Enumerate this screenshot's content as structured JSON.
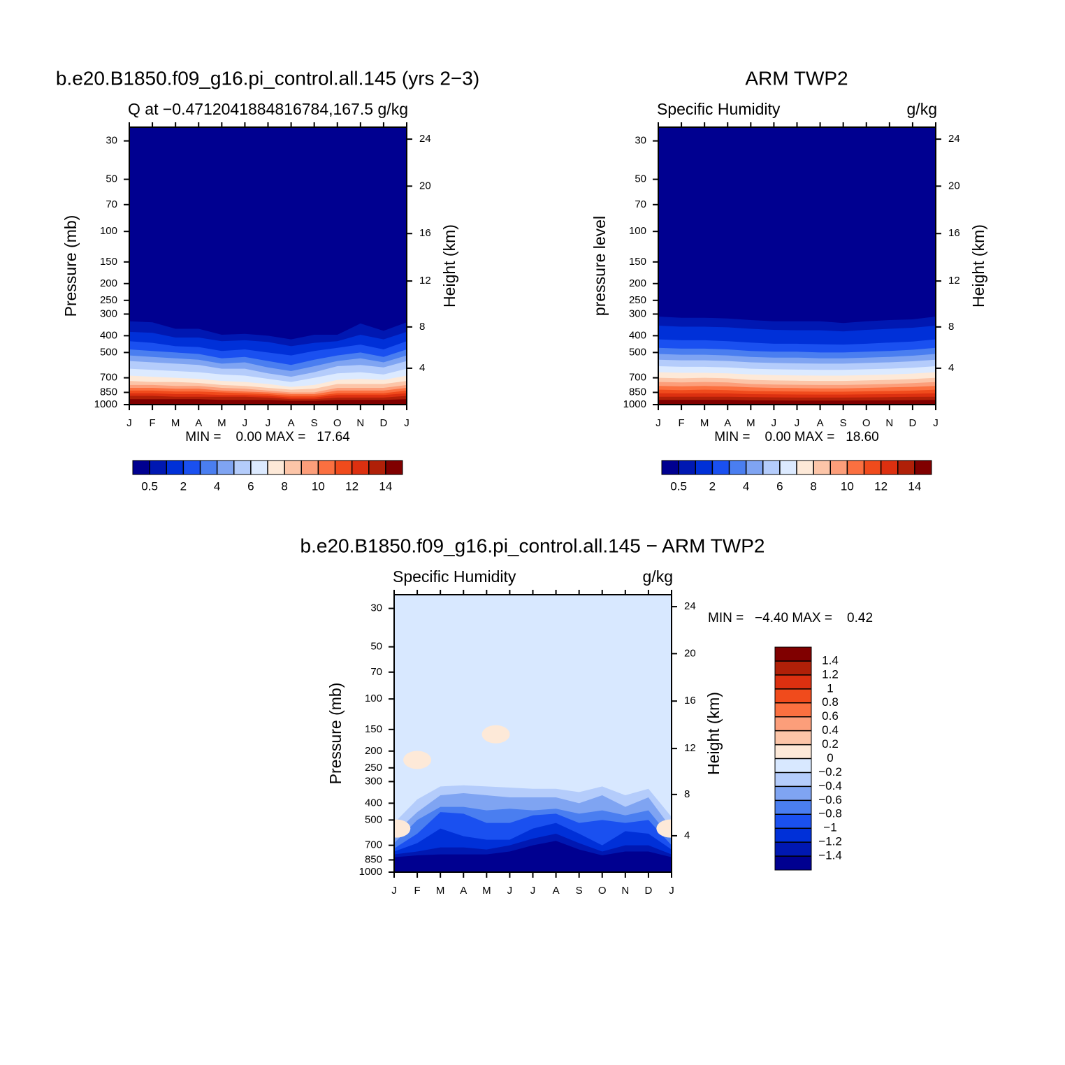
{
  "chart_data": [
    {
      "type": "contour",
      "title": "b.e20.B1850.f09_g16.pi_control.all.145 (yrs 2−3)",
      "subtitle_left": "Q at −0.4712041884816784,167.5",
      "subtitle_right": "g/kg",
      "ylabel": "Pressure (mb)",
      "y2label": "Height (km)",
      "categories": [
        "J",
        "F",
        "M",
        "A",
        "M",
        "J",
        "J",
        "A",
        "S",
        "O",
        "N",
        "D",
        "J"
      ],
      "log_y": true,
      "ylim": [
        1000,
        25
      ],
      "yticks": [
        30,
        50,
        70,
        100,
        150,
        200,
        250,
        300,
        400,
        500,
        700,
        850,
        1000
      ],
      "y2ticks": [
        4,
        8,
        12,
        16,
        20,
        24
      ],
      "stats": "MIN =    0.00 MAX =   17.64",
      "colorbar": {
        "orientation": "horizontal",
        "levels": [
          0.5,
          1,
          2,
          3,
          4,
          5,
          6,
          7,
          8,
          9,
          10,
          11,
          12,
          13,
          14
        ],
        "ticks": [
          0.5,
          2,
          4,
          6,
          8,
          10,
          12,
          14
        ],
        "colors": [
          "#000090",
          "#0018b2",
          "#0030d8",
          "#1a50f0",
          "#4a7ef0",
          "#7fa4f2",
          "#b4ccfb",
          "#dceaff",
          "#fde9d8",
          "#fcc5a8",
          "#fc9e7a",
          "#fb7040",
          "#f04b1c",
          "#dc3010",
          "#b02008",
          "#800000"
        ]
      },
      "contours": [
        {
          "level": 0.5,
          "pressure": [
            330,
            335,
            365,
            365,
            395,
            390,
            400,
            420,
            395,
            395,
            340,
            375,
            335
          ]
        },
        {
          "level": 1,
          "pressure": [
            380,
            385,
            410,
            410,
            430,
            425,
            435,
            460,
            440,
            430,
            395,
            420,
            380
          ]
        },
        {
          "level": 2,
          "pressure": [
            430,
            440,
            460,
            465,
            490,
            480,
            500,
            520,
            490,
            470,
            450,
            480,
            430
          ]
        },
        {
          "level": 3,
          "pressure": [
            480,
            490,
            500,
            510,
            540,
            530,
            560,
            590,
            550,
            520,
            500,
            530,
            480
          ]
        },
        {
          "level": 4,
          "pressure": [
            520,
            530,
            540,
            550,
            580,
            570,
            610,
            640,
            600,
            560,
            540,
            570,
            520
          ]
        },
        {
          "level": 5,
          "pressure": [
            560,
            570,
            580,
            590,
            620,
            620,
            660,
            690,
            650,
            600,
            590,
            610,
            560
          ]
        },
        {
          "level": 6,
          "pressure": [
            620,
            630,
            640,
            650,
            670,
            680,
            710,
            740,
            700,
            660,
            650,
            670,
            620
          ]
        },
        {
          "level": 7,
          "pressure": [
            680,
            690,
            700,
            710,
            730,
            740,
            760,
            790,
            770,
            720,
            710,
            720,
            680
          ]
        },
        {
          "level": 8,
          "pressure": [
            730,
            740,
            740,
            750,
            770,
            780,
            800,
            820,
            810,
            760,
            760,
            760,
            730
          ]
        },
        {
          "level": 9,
          "pressure": [
            770,
            770,
            780,
            780,
            800,
            810,
            830,
            850,
            850,
            800,
            800,
            800,
            770
          ]
        },
        {
          "level": 10,
          "pressure": [
            800,
            800,
            810,
            810,
            830,
            840,
            850,
            870,
            870,
            830,
            830,
            830,
            800
          ]
        },
        {
          "level": 11,
          "pressure": [
            830,
            830,
            840,
            840,
            850,
            860,
            870,
            890,
            890,
            860,
            860,
            860,
            830
          ]
        },
        {
          "level": 12,
          "pressure": [
            860,
            860,
            870,
            870,
            880,
            880,
            890,
            910,
            910,
            880,
            880,
            880,
            860
          ]
        },
        {
          "level": 13,
          "pressure": [
            890,
            890,
            900,
            900,
            900,
            900,
            910,
            930,
            930,
            910,
            910,
            910,
            890
          ]
        },
        {
          "level": 14,
          "pressure": [
            930,
            930,
            930,
            930,
            940,
            940,
            940,
            950,
            950,
            940,
            940,
            940,
            930
          ]
        }
      ]
    },
    {
      "type": "contour",
      "title": "ARM TWP2",
      "subtitle_left": "Specific Humidity",
      "subtitle_right": "g/kg",
      "ylabel": "pressure level",
      "y2label": "Height (km)",
      "categories": [
        "J",
        "F",
        "M",
        "A",
        "M",
        "J",
        "J",
        "A",
        "S",
        "O",
        "N",
        "D",
        "J"
      ],
      "log_y": true,
      "ylim": [
        1000,
        25
      ],
      "yticks": [
        30,
        50,
        70,
        100,
        150,
        200,
        250,
        300,
        400,
        500,
        700,
        850,
        1000
      ],
      "y2ticks": [
        4,
        8,
        12,
        16,
        20,
        24
      ],
      "stats": "MIN =    0.00 MAX =   18.60",
      "colorbar": {
        "orientation": "horizontal",
        "levels": [
          0.5,
          1,
          2,
          3,
          4,
          5,
          6,
          7,
          8,
          9,
          10,
          11,
          12,
          13,
          14
        ],
        "ticks": [
          0.5,
          2,
          4,
          6,
          8,
          10,
          12,
          14
        ],
        "colors": [
          "#000090",
          "#0018b2",
          "#0030d8",
          "#1a50f0",
          "#4a7ef0",
          "#7fa4f2",
          "#b4ccfb",
          "#dceaff",
          "#fde9d8",
          "#fcc5a8",
          "#fc9e7a",
          "#fb7040",
          "#f04b1c",
          "#dc3010",
          "#b02008",
          "#800000"
        ]
      },
      "contours": [
        {
          "level": 0.5,
          "pressure": [
            310,
            315,
            315,
            318,
            325,
            330,
            330,
            330,
            338,
            330,
            325,
            322,
            310
          ]
        },
        {
          "level": 1,
          "pressure": [
            350,
            355,
            355,
            358,
            365,
            370,
            372,
            372,
            378,
            370,
            365,
            360,
            350
          ]
        },
        {
          "level": 2,
          "pressure": [
            420,
            425,
            425,
            430,
            438,
            445,
            445,
            448,
            450,
            445,
            438,
            432,
            420
          ]
        },
        {
          "level": 3,
          "pressure": [
            470,
            475,
            475,
            480,
            490,
            495,
            495,
            500,
            500,
            495,
            490,
            482,
            470
          ]
        },
        {
          "level": 4,
          "pressure": [
            510,
            515,
            515,
            520,
            530,
            535,
            535,
            540,
            540,
            535,
            530,
            522,
            510
          ]
        },
        {
          "level": 5,
          "pressure": [
            550,
            555,
            555,
            560,
            570,
            575,
            578,
            580,
            580,
            575,
            570,
            562,
            550
          ]
        },
        {
          "level": 6,
          "pressure": [
            600,
            605,
            605,
            610,
            620,
            625,
            628,
            630,
            630,
            625,
            620,
            612,
            600
          ]
        },
        {
          "level": 7,
          "pressure": [
            650,
            655,
            655,
            660,
            670,
            675,
            678,
            680,
            680,
            675,
            670,
            662,
            650
          ]
        },
        {
          "level": 8,
          "pressure": [
            700,
            705,
            700,
            705,
            720,
            725,
            728,
            730,
            730,
            725,
            720,
            712,
            700
          ]
        },
        {
          "level": 9,
          "pressure": [
            740,
            745,
            740,
            745,
            760,
            765,
            768,
            770,
            770,
            765,
            760,
            752,
            740
          ]
        },
        {
          "level": 10,
          "pressure": [
            780,
            785,
            780,
            785,
            795,
            800,
            802,
            805,
            805,
            800,
            795,
            790,
            780
          ]
        },
        {
          "level": 11,
          "pressure": [
            820,
            825,
            820,
            825,
            835,
            838,
            840,
            842,
            842,
            838,
            835,
            830,
            820
          ]
        },
        {
          "level": 12,
          "pressure": [
            860,
            862,
            860,
            862,
            870,
            872,
            874,
            875,
            875,
            872,
            870,
            866,
            860
          ]
        },
        {
          "level": 13,
          "pressure": [
            900,
            900,
            900,
            900,
            905,
            908,
            910,
            910,
            910,
            908,
            905,
            902,
            900
          ]
        },
        {
          "level": 14,
          "pressure": [
            940,
            940,
            940,
            940,
            945,
            946,
            948,
            948,
            948,
            946,
            945,
            942,
            940
          ]
        }
      ]
    },
    {
      "type": "contour",
      "title": "b.e20.B1850.f09_g16.pi_control.all.145 − ARM TWP2",
      "subtitle_left": "Specific Humidity",
      "subtitle_right": "g/kg",
      "ylabel": "Pressure (mb)",
      "y2label": "Height (km)",
      "categories": [
        "J",
        "F",
        "M",
        "A",
        "M",
        "J",
        "J",
        "A",
        "S",
        "O",
        "N",
        "D",
        "J"
      ],
      "log_y": true,
      "ylim": [
        1000,
        25
      ],
      "yticks": [
        30,
        50,
        70,
        100,
        150,
        200,
        250,
        300,
        400,
        500,
        700,
        850,
        1000
      ],
      "y2ticks": [
        4,
        8,
        12,
        16,
        20,
        24
      ],
      "stats": "MIN =   −4.40 MAX =    0.42",
      "colorbar": {
        "orientation": "vertical",
        "levels": [
          -1.4,
          -1.2,
          -1,
          -0.8,
          -0.6,
          -0.4,
          -0.2,
          0,
          0.2,
          0.4,
          0.6,
          0.8,
          1,
          1.2,
          1.4
        ],
        "ticks": [
          {
            "value": -1.4,
            "label": "−1.4"
          },
          {
            "value": -1.2,
            "label": "−1.2"
          },
          {
            "value": -1,
            "label": "−1"
          },
          {
            "value": -0.8,
            "label": "−0.8"
          },
          {
            "value": -0.6,
            "label": "−0.6"
          },
          {
            "value": -0.4,
            "label": "−0.4"
          },
          {
            "value": -0.2,
            "label": "−0.2"
          },
          0,
          0.2,
          0.4,
          0.6,
          0.8,
          1,
          1.2,
          1.4
        ],
        "colors": [
          "#000090",
          "#0018b2",
          "#0030d8",
          "#1a50f0",
          "#4a7ef0",
          "#7fa4f2",
          "#b4ccfb",
          "#d8e8ff",
          "#fde9d8",
          "#fcc5a8",
          "#fc9e7a",
          "#fb7040",
          "#f04b1c",
          "#dc3010",
          "#b02008",
          "#800000"
        ]
      },
      "contours": [
        {
          "level": -0.2,
          "pressure": [
            520,
            380,
            320,
            315,
            320,
            325,
            330,
            330,
            345,
            320,
            360,
            330,
            480
          ]
        },
        {
          "level": -0.4,
          "pressure": [
            600,
            450,
            360,
            350,
            360,
            370,
            370,
            370,
            400,
            360,
            420,
            370,
            560
          ]
        },
        {
          "level": -0.6,
          "pressure": [
            680,
            500,
            420,
            420,
            440,
            430,
            440,
            430,
            460,
            440,
            470,
            440,
            640
          ]
        },
        {
          "level": -0.8,
          "pressure": [
            730,
            600,
            450,
            460,
            520,
            520,
            470,
            460,
            520,
            500,
            520,
            500,
            700
          ]
        },
        {
          "level": -1,
          "pressure": [
            760,
            680,
            560,
            620,
            650,
            650,
            560,
            520,
            600,
            700,
            580,
            600,
            740
          ]
        },
        {
          "level": -1.2,
          "pressure": [
            790,
            760,
            720,
            720,
            740,
            700,
            640,
            600,
            680,
            760,
            700,
            700,
            790
          ]
        },
        {
          "level": -1.4,
          "pressure": [
            820,
            800,
            790,
            790,
            790,
            760,
            700,
            660,
            740,
            800,
            760,
            760,
            820
          ]
        }
      ],
      "patches": [
        {
          "month": 4.4,
          "pressure": 160,
          "value": 0.1
        },
        {
          "month": 1,
          "pressure": 225,
          "value": 0.1
        },
        {
          "month": 0.1,
          "pressure": 560,
          "value": 0.1
        },
        {
          "month": 11.95,
          "pressure": 560,
          "value": 0.1
        }
      ]
    }
  ]
}
